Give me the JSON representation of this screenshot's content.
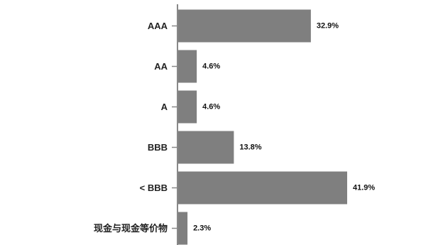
{
  "chart_data": {
    "type": "bar",
    "orientation": "horizontal",
    "categories": [
      "AAA",
      "AA",
      "A",
      "BBB",
      "< BBB",
      "现金与现金等价物"
    ],
    "values": [
      32.9,
      4.6,
      4.6,
      13.8,
      41.9,
      2.3
    ],
    "value_labels": [
      "32.9%",
      "4.6%",
      "4.6%",
      "13.8%",
      "41.9%",
      "2.3%"
    ],
    "unit": "%",
    "bar_color": "#7f7f7f",
    "axis_color": "#888888",
    "grid": false,
    "legend": "none"
  }
}
